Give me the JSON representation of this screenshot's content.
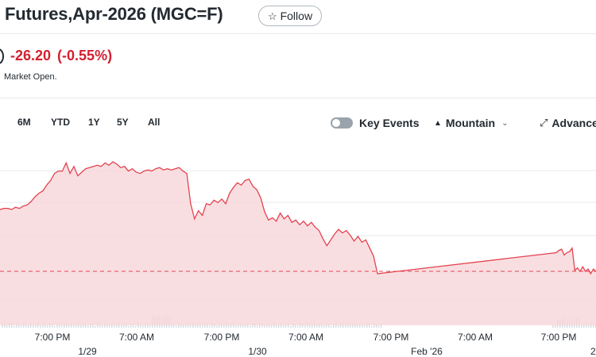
{
  "header": {
    "title": "Futures,Apr-2026 (MGC=F)",
    "follow_label": "Follow",
    "follow_icon": "star-outline-icon"
  },
  "quote": {
    "change": "-26.20",
    "change_pct": "(-0.55%)",
    "change_color": "#d3202f",
    "market_status": "Market Open."
  },
  "toolbar": {
    "ranges": [
      "6M",
      "YTD",
      "1Y",
      "5Y",
      "All"
    ],
    "key_events_label": "Key Events",
    "key_events_on": false,
    "chart_type_label": "Mountain",
    "chart_type_icon": "mountain-icon",
    "advanced_label": "Advance",
    "advanced_icon": "expand-arrows-icon"
  },
  "chart_data": {
    "type": "area",
    "title": "",
    "xlabel": "",
    "ylabel": "",
    "series_color": "#e3434f",
    "fill_color": "#f8d6d9",
    "grid": true,
    "reference_line_style": "dashed",
    "volume_bars": true,
    "x_tick_labels": [
      {
        "top": "7:00 PM",
        "bottom": "1/29"
      },
      {
        "top": "7:00 AM",
        "bottom": ""
      },
      {
        "top": "7:00 PM",
        "bottom": "1/30"
      },
      {
        "top": "7:00 AM",
        "bottom": ""
      },
      {
        "top": "7:00 PM",
        "bottom": "Feb '26"
      },
      {
        "top": "7:00 AM",
        "bottom": ""
      },
      {
        "top": "7:00 PM",
        "bottom": "2/"
      }
    ],
    "relative_values": [
      0.55,
      0.56,
      0.56,
      0.55,
      0.57,
      0.56,
      0.58,
      0.59,
      0.62,
      0.66,
      0.69,
      0.71,
      0.76,
      0.8,
      0.86,
      0.88,
      0.88,
      0.95,
      0.86,
      0.92,
      0.84,
      0.87,
      0.9,
      0.91,
      0.92,
      0.93,
      0.92,
      0.95,
      0.93,
      0.96,
      0.94,
      0.91,
      0.92,
      0.88,
      0.9,
      0.87,
      0.86,
      0.88,
      0.89,
      0.88,
      0.9,
      0.91,
      0.89,
      0.9,
      0.89,
      0.9,
      0.91,
      0.88,
      0.86,
      0.6,
      0.47,
      0.54,
      0.5,
      0.6,
      0.59,
      0.63,
      0.61,
      0.64,
      0.6,
      0.69,
      0.74,
      0.78,
      0.76,
      0.8,
      0.81,
      0.75,
      0.72,
      0.65,
      0.53,
      0.46,
      0.48,
      0.45,
      0.52,
      0.47,
      0.5,
      0.44,
      0.46,
      0.42,
      0.45,
      0.41,
      0.44,
      0.4,
      0.37,
      0.3,
      0.24,
      0.29,
      0.34,
      0.38,
      0.35,
      0.37,
      0.33,
      0.28,
      0.32,
      0.27,
      0.29,
      0.22,
      0.15,
      0.0,
      0.18,
      0.2,
      0.21,
      0.16,
      0.18,
      0.19,
      0.22,
      0.03,
      0.05,
      0.02,
      0.06,
      0.02,
      0.04,
      0.0,
      0.04,
      0.02
    ]
  }
}
